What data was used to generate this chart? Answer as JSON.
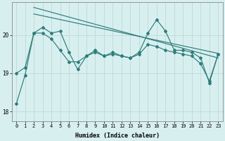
{
  "xlabel": "Humidex (Indice chaleur)",
  "x": [
    0,
    1,
    2,
    3,
    4,
    5,
    6,
    7,
    8,
    9,
    10,
    11,
    12,
    13,
    14,
    15,
    16,
    17,
    18,
    19,
    20,
    21,
    22,
    23
  ],
  "line_main": [
    18.2,
    18.95,
    20.05,
    20.2,
    20.05,
    20.1,
    19.55,
    19.1,
    19.45,
    19.6,
    19.45,
    19.55,
    19.45,
    19.4,
    19.55,
    20.05,
    20.4,
    20.1,
    19.6,
    19.6,
    19.55,
    19.4,
    18.75,
    19.5
  ],
  "line_second": [
    19.0,
    19.15,
    20.05,
    20.05,
    19.9,
    19.6,
    19.3,
    19.3,
    19.45,
    19.55,
    19.45,
    19.5,
    19.45,
    19.4,
    19.5,
    19.75,
    19.7,
    19.6,
    19.55,
    19.5,
    19.45,
    19.25,
    18.8,
    19.5
  ],
  "trend1_x": [
    2,
    23
  ],
  "trend1_y": [
    20.72,
    19.4
  ],
  "trend2_x": [
    2,
    23
  ],
  "trend2_y": [
    20.55,
    19.52
  ],
  "bg_color": "#d8eff0",
  "grid_color": "#c0d8d8",
  "line_color": "#2e7d7a",
  "ylim": [
    17.75,
    20.85
  ],
  "yticks": [
    18,
    19,
    20
  ],
  "xticks": [
    0,
    1,
    2,
    3,
    4,
    5,
    6,
    7,
    8,
    9,
    10,
    11,
    12,
    13,
    14,
    15,
    16,
    17,
    18,
    19,
    20,
    21,
    22,
    23
  ]
}
